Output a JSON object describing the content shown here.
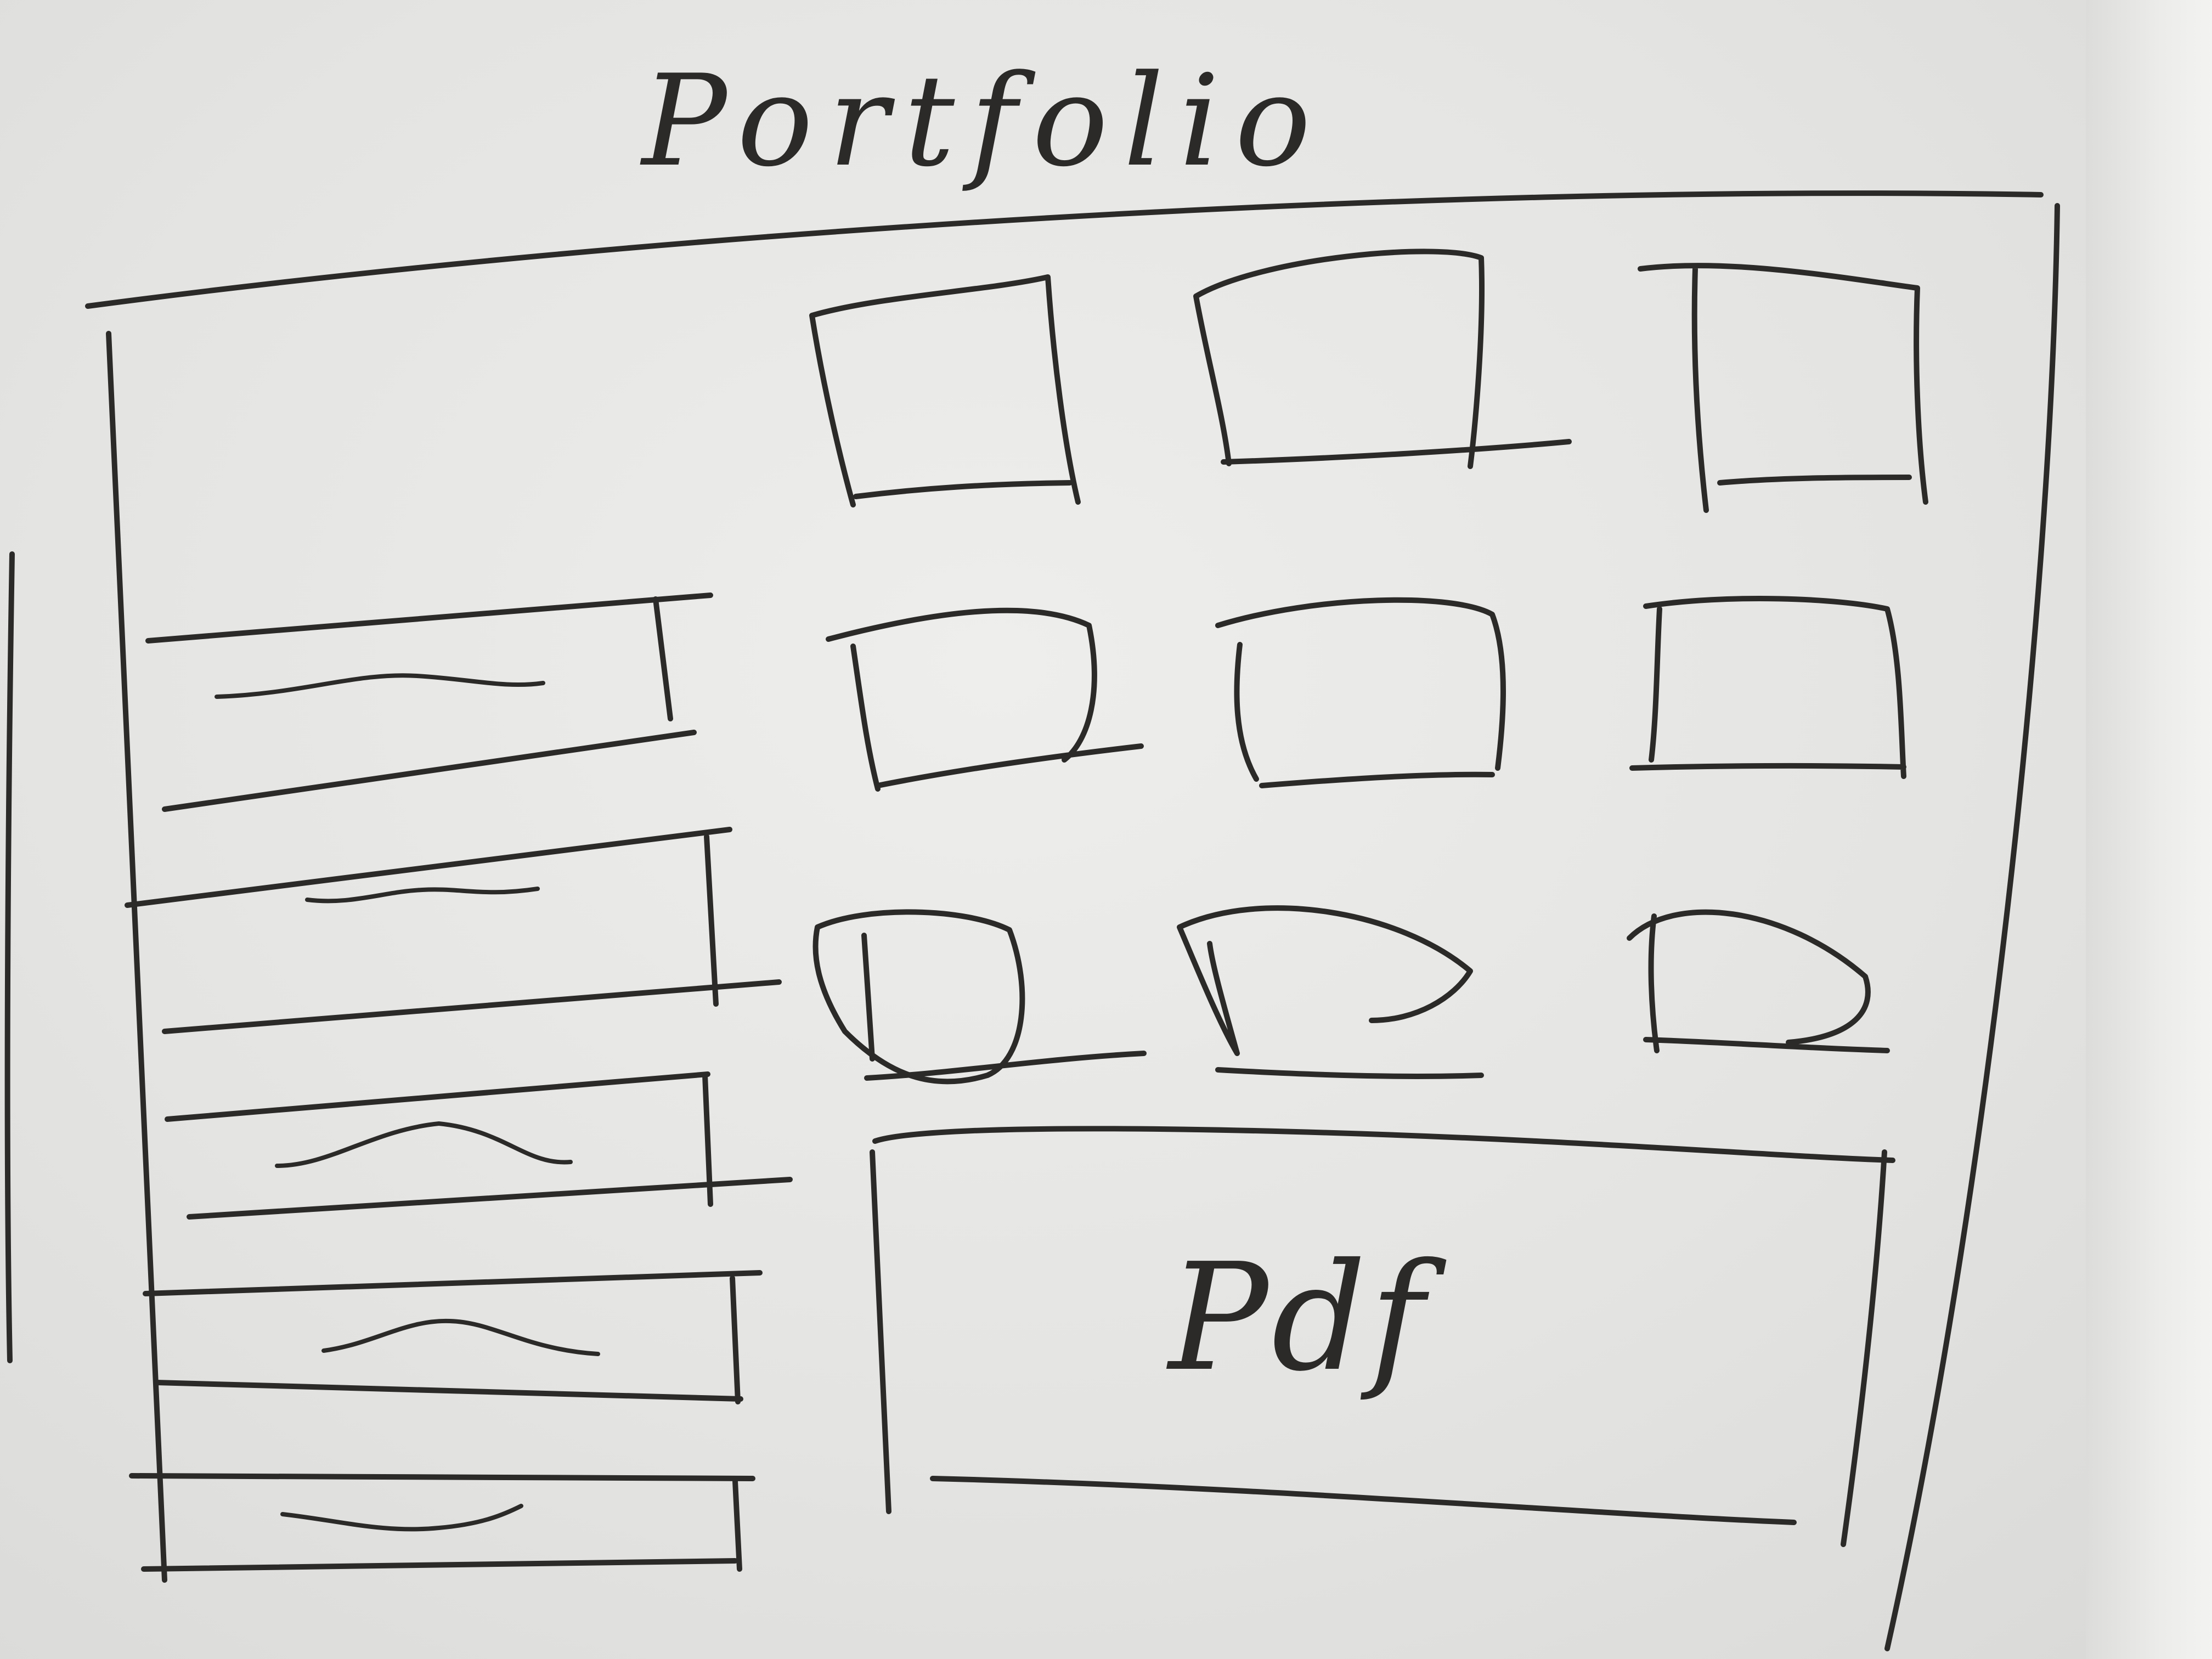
{
  "header": {
    "title": "Portfolio"
  },
  "sidebar": {
    "items": [
      {
        "label": ""
      },
      {
        "label": ""
      },
      {
        "label": ""
      },
      {
        "label": ""
      },
      {
        "label": ""
      }
    ]
  },
  "gallery": {
    "rows": 3,
    "columns": 3
  },
  "pdf_panel": {
    "label": "Pdf"
  },
  "colors": {
    "ink": "#2b2a28",
    "paper": "#e6e6e4"
  }
}
